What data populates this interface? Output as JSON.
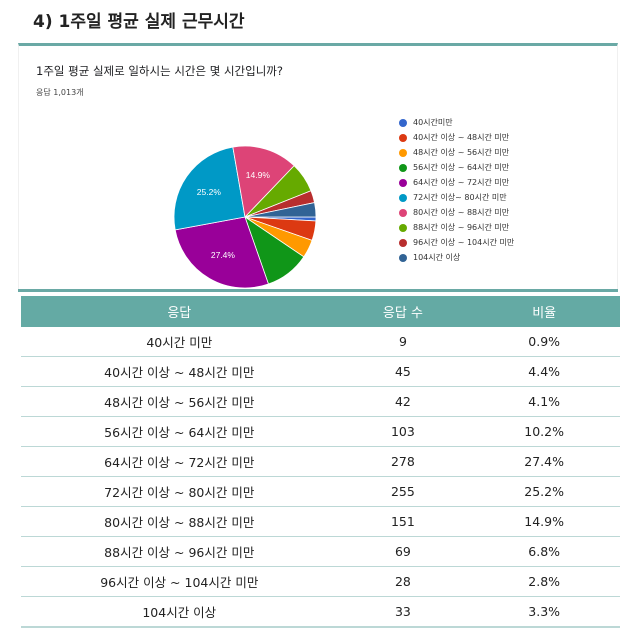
{
  "section": {
    "title": "4) 1주일 평균 실제 근무시간"
  },
  "card": {
    "question": "1주일 평균 실제로 일하시는 시간은 몇 시간입니까?",
    "response_count": "응답 1,013개"
  },
  "chart_data": {
    "type": "pie",
    "title": "1주일 평균 실제로 일하시는 시간은 몇 시간입니까?",
    "subtitle": "응답 1,013개",
    "legend_position": "right",
    "start_angle_deg": 90,
    "categories": [
      "40시간미만",
      "40시간 이상 ~ 48시간 미만",
      "48시간 이상 ~ 56시간 미만",
      "56시간 이상 ~ 64시간 미만",
      "64시간 이상 ~ 72시간 미만",
      "72시간 이상~ 80시간 미만",
      "80시간 이상 ~ 88시간 미만",
      "88시간 이상 ~ 96시간 미만",
      "96시간 이상 ~ 104시간 미만",
      "104시간 이상"
    ],
    "values": [
      9,
      45,
      42,
      103,
      278,
      255,
      151,
      69,
      28,
      33
    ],
    "percentages": [
      0.9,
      4.4,
      4.1,
      10.2,
      27.4,
      25.2,
      14.9,
      6.8,
      2.8,
      3.3
    ],
    "colors": [
      "#3366cc",
      "#dc3912",
      "#ff9900",
      "#109618",
      "#990099",
      "#0099c6",
      "#dd4477",
      "#66aa00",
      "#b82e2e",
      "#316395"
    ],
    "slice_labels_shown": [
      "27.4%",
      "25.2%",
      "14.9%"
    ]
  },
  "table": {
    "headers": [
      "응답",
      "응답 수",
      "비율"
    ],
    "rows": [
      [
        "40시간 미만",
        "9",
        "0.9%"
      ],
      [
        "40시간 이상 ~ 48시간 미만",
        "45",
        "4.4%"
      ],
      [
        "48시간 이상 ~ 56시간 미만",
        "42",
        "4.1%"
      ],
      [
        "56시간 이상 ~ 64시간 미만",
        "103",
        "10.2%"
      ],
      [
        "64시간 이상 ~ 72시간 미만",
        "278",
        "27.4%"
      ],
      [
        "72시간 이상 ~ 80시간 미만",
        "255",
        "25.2%"
      ],
      [
        "80시간 이상 ~ 88시간 미만",
        "151",
        "14.9%"
      ],
      [
        "88시간 이상 ~ 96시간 미만",
        "69",
        "6.8%"
      ],
      [
        "96시간 이상 ~ 104시간 미만",
        "28",
        "2.8%"
      ],
      [
        "104시간 이상",
        "33",
        "3.3%"
      ]
    ]
  }
}
